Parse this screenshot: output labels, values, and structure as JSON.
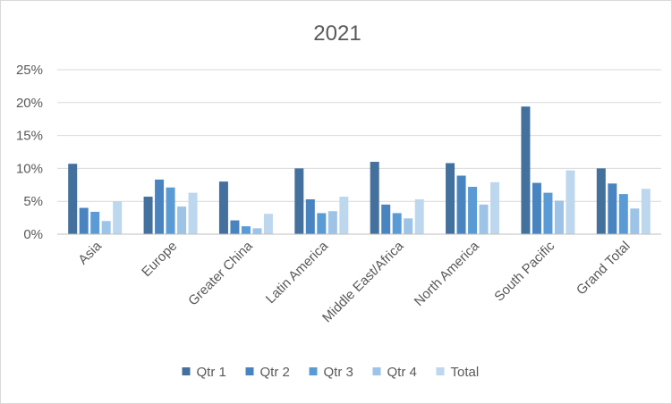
{
  "chart_data": {
    "type": "bar",
    "title": "2021",
    "xlabel": "",
    "ylabel": "",
    "ylim": [
      0,
      0.25
    ],
    "yticks": [
      "0%",
      "5%",
      "10%",
      "15%",
      "20%",
      "25%"
    ],
    "grid": true,
    "legend_position": "bottom",
    "categories": [
      "Asia",
      "Europe",
      "Greater China",
      "Latin America",
      "Middle East/Africa",
      "North America",
      "South Pacific",
      "Grand Total"
    ],
    "series": [
      {
        "name": "Qtr 1",
        "color": "#44709d",
        "values": [
          0.107,
          0.057,
          0.08,
          0.1,
          0.11,
          0.108,
          0.194,
          0.1
        ]
      },
      {
        "name": "Qtr 2",
        "color": "#4a84c0",
        "values": [
          0.04,
          0.083,
          0.021,
          0.053,
          0.045,
          0.089,
          0.078,
          0.077
        ]
      },
      {
        "name": "Qtr 3",
        "color": "#5b9bd5",
        "values": [
          0.034,
          0.071,
          0.012,
          0.032,
          0.032,
          0.072,
          0.063,
          0.061
        ]
      },
      {
        "name": "Qtr 4",
        "color": "#9dc3e6",
        "values": [
          0.02,
          0.042,
          0.009,
          0.035,
          0.024,
          0.045,
          0.051,
          0.039
        ]
      },
      {
        "name": "Total",
        "color": "#bdd7ee",
        "values": [
          0.05,
          0.063,
          0.031,
          0.057,
          0.053,
          0.079,
          0.097,
          0.069
        ]
      }
    ]
  }
}
